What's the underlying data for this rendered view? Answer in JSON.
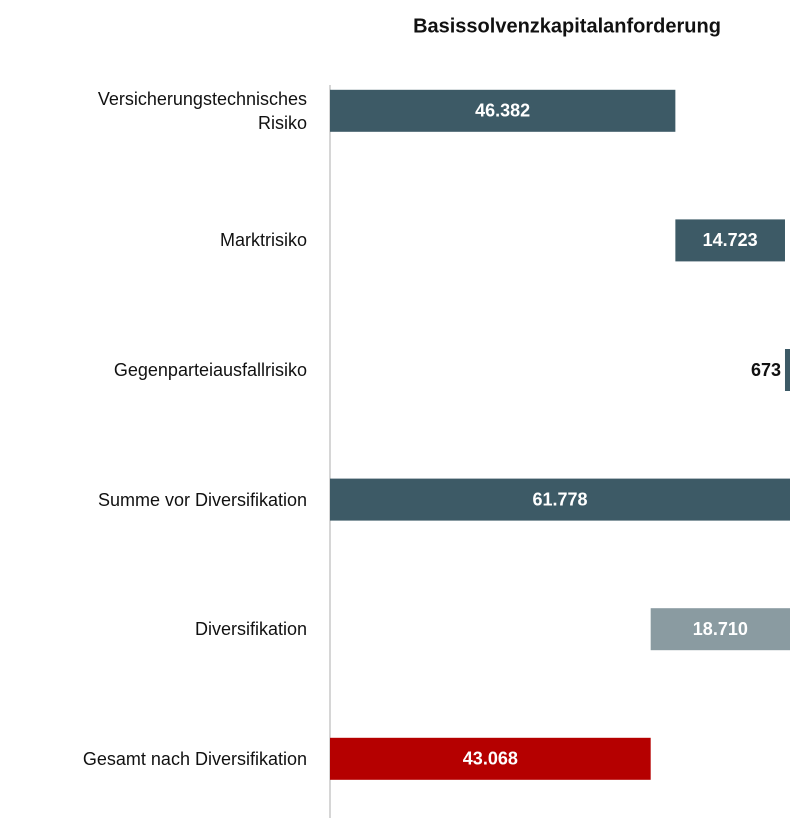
{
  "chart_data": {
    "type": "waterfall",
    "title": "Basissolvenzkapitalanforderung",
    "categories": [
      "Versicherungstechnisches\nRisiko",
      "Marktrisiko",
      "Gegenparteiausfallrisiko",
      "Summe vor Diversifikation",
      "Diversifikation",
      "Gesamt nach Diversifikation"
    ],
    "values": [
      46382,
      14723,
      673,
      61778,
      -18710,
      43068
    ],
    "value_labels": [
      "46.382",
      "14.723",
      "673",
      "61.778",
      "18.710",
      "43.068"
    ],
    "is_total": [
      false,
      false,
      false,
      true,
      false,
      true
    ],
    "colors": [
      "#3d5a66",
      "#3d5a66",
      "#3d5a66",
      "#3d5a66",
      "#8a9ba1",
      "#b50000"
    ],
    "xlim": [
      0,
      61778
    ]
  }
}
